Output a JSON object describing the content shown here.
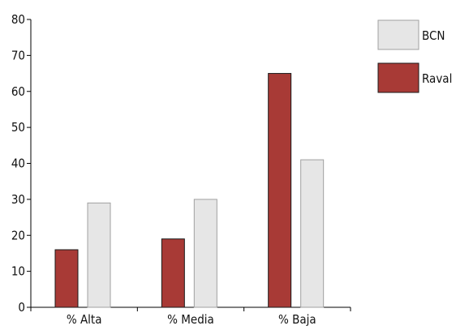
{
  "colors": {
    "raval_fill": "#a83a36",
    "raval_stroke": "#1a1a1a",
    "bcn_fill": "#e6e6e6",
    "bcn_stroke": "#a0a0a0"
  },
  "chart_data": {
    "type": "bar",
    "title": "",
    "xlabel": "",
    "ylabel": "",
    "categories": [
      "% Alta",
      "% Media",
      "% Baja"
    ],
    "ylim": [
      0,
      80
    ],
    "yticks": [
      0,
      10,
      20,
      30,
      40,
      50,
      60,
      70,
      80
    ],
    "grid": false,
    "legend_position": "top-right",
    "legend_order": [
      "BCN",
      "Raval"
    ],
    "series": [
      {
        "name": "Raval",
        "color": "#a83a36",
        "values": [
          16,
          19,
          65
        ]
      },
      {
        "name": "BCN",
        "color": "#e6e6e6",
        "values": [
          29,
          30,
          41
        ]
      }
    ]
  }
}
